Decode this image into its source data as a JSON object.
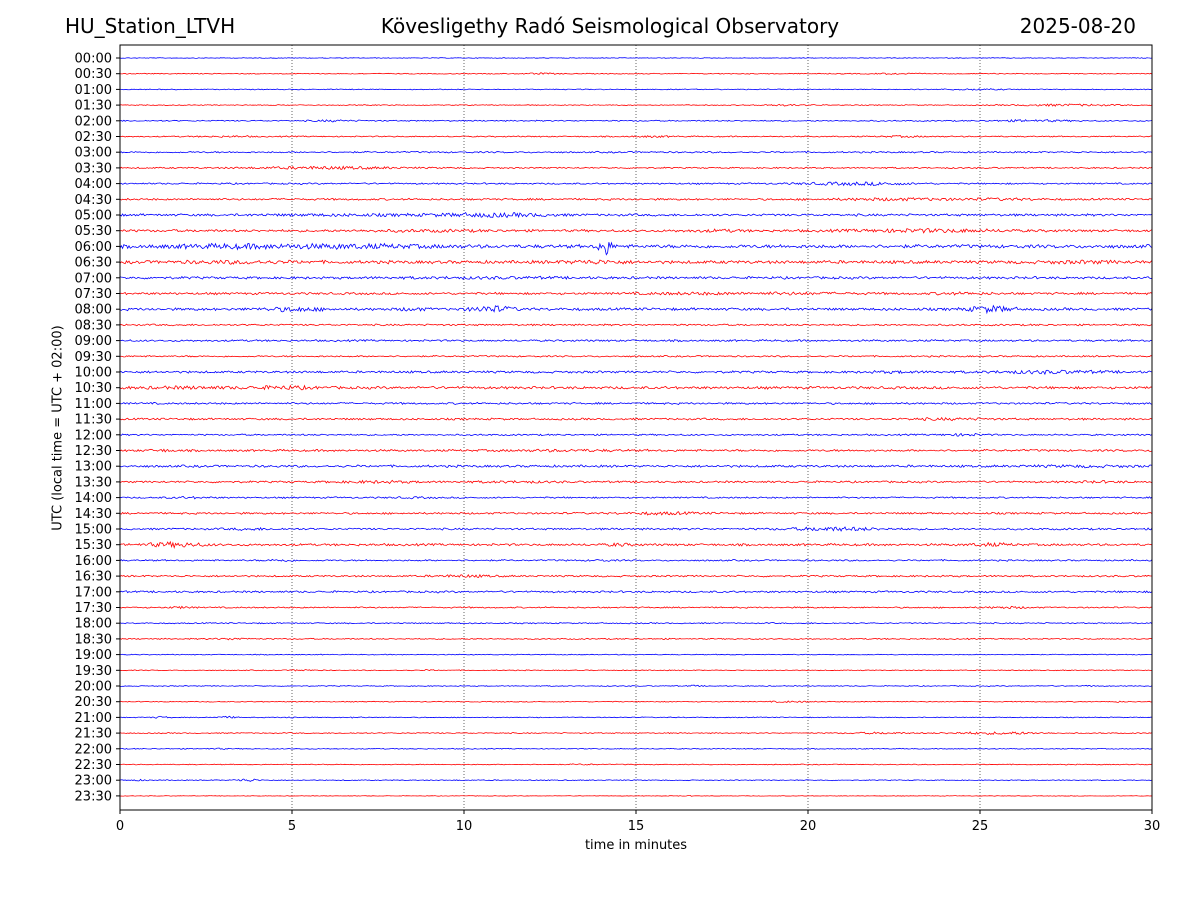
{
  "header": {
    "station": "HU_Station_LTVH",
    "title": "Kövesligethy Radó Seismological Observatory",
    "date": "2025-08-20"
  },
  "chart_data": {
    "type": "line",
    "title": "Kövesligethy Radó Seismological Observatory",
    "xlabel": "time in minutes",
    "ylabel": "UTC (local time = UTC + 02:00)",
    "xlim": [
      0,
      30
    ],
    "x_ticks": [
      0,
      5,
      10,
      15,
      20,
      25,
      30
    ],
    "grid": "vertical dotted lines at 5-minute ticks",
    "series_colors": [
      "#0000ff",
      "#ff0000"
    ],
    "traces": [
      {
        "label": "00:00",
        "color": "#0000ff",
        "amp": 0.4,
        "bursts": []
      },
      {
        "label": "00:30",
        "color": "#ff0000",
        "amp": 0.5,
        "bursts": [
          [
            12.2,
            1.2,
            0.5
          ],
          [
            22.5,
            1.5,
            0.5
          ]
        ]
      },
      {
        "label": "01:00",
        "color": "#0000ff",
        "amp": 0.5,
        "bursts": [
          [
            24.8,
            2,
            0.5
          ]
        ]
      },
      {
        "label": "01:30",
        "color": "#ff0000",
        "amp": 0.5,
        "bursts": [
          [
            19.3,
            2,
            0.5
          ],
          [
            27.5,
            3.5,
            0.8
          ]
        ]
      },
      {
        "label": "02:00",
        "color": "#0000ff",
        "amp": 0.7,
        "bursts": [
          [
            6.2,
            1.5,
            0.6
          ],
          [
            26.5,
            2.5,
            0.7
          ]
        ]
      },
      {
        "label": "02:30",
        "color": "#ff0000",
        "amp": 0.7,
        "bursts": [
          [
            3.2,
            2,
            0.4
          ],
          [
            15.5,
            1.5,
            0.5
          ],
          [
            22.8,
            1.5,
            0.5
          ]
        ]
      },
      {
        "label": "03:00",
        "color": "#0000ff",
        "amp": 0.9,
        "bursts": []
      },
      {
        "label": "03:30",
        "color": "#ff0000",
        "amp": 0.8,
        "bursts": [
          [
            6.0,
            5,
            1.0
          ]
        ]
      },
      {
        "label": "04:00",
        "color": "#0000ff",
        "amp": 0.9,
        "bursts": [
          [
            21.0,
            3,
            1.0
          ],
          [
            22.3,
            2,
            0.6
          ]
        ]
      },
      {
        "label": "04:30",
        "color": "#ff0000",
        "amp": 1.1,
        "bursts": [
          [
            22.5,
            4,
            0.8
          ],
          [
            25.5,
            3,
            0.6
          ]
        ]
      },
      {
        "label": "05:00",
        "color": "#0000ff",
        "amp": 1.3,
        "bursts": [
          [
            6.5,
            6,
            0.5
          ],
          [
            10.8,
            4,
            1.4
          ]
        ]
      },
      {
        "label": "05:30",
        "color": "#ff0000",
        "amp": 1.4,
        "bursts": [
          [
            9.0,
            4,
            0.5
          ],
          [
            17.3,
            2,
            0.6
          ],
          [
            23.5,
            5,
            1.1
          ]
        ]
      },
      {
        "label": "06:00",
        "color": "#0000ff",
        "amp": 2.0,
        "bursts": [
          [
            3.0,
            4,
            1.0
          ],
          [
            6.5,
            6,
            1.2
          ],
          [
            14.1,
            0.4,
            9
          ]
        ]
      },
      {
        "label": "06:30",
        "color": "#ff0000",
        "amp": 1.8,
        "bursts": [
          [
            3.5,
            4,
            0.7
          ],
          [
            13.8,
            2,
            1.0
          ],
          [
            28.0,
            3,
            0.6
          ]
        ]
      },
      {
        "label": "07:00",
        "color": "#0000ff",
        "amp": 1.4,
        "bursts": [
          [
            10.5,
            6,
            0.4
          ]
        ]
      },
      {
        "label": "07:30",
        "color": "#ff0000",
        "amp": 1.3,
        "bursts": [
          [
            16.5,
            3,
            0.6
          ],
          [
            19.5,
            4,
            0.6
          ],
          [
            24.5,
            2,
            0.6
          ]
        ]
      },
      {
        "label": "08:00",
        "color": "#0000ff",
        "amp": 1.5,
        "bursts": [
          [
            5.0,
            2,
            1.5
          ],
          [
            8.5,
            1,
            1.0
          ],
          [
            10.8,
            1.5,
            2.5
          ],
          [
            25.3,
            1.5,
            2.5
          ]
        ]
      },
      {
        "label": "08:30",
        "color": "#ff0000",
        "amp": 1.0,
        "bursts": []
      },
      {
        "label": "09:00",
        "color": "#0000ff",
        "amp": 1.1,
        "bursts": []
      },
      {
        "label": "09:30",
        "color": "#ff0000",
        "amp": 0.9,
        "bursts": []
      },
      {
        "label": "10:00",
        "color": "#0000ff",
        "amp": 1.3,
        "bursts": [
          [
            22.5,
            2,
            0.5
          ],
          [
            27.0,
            4,
            1.0
          ]
        ]
      },
      {
        "label": "10:30",
        "color": "#ff0000",
        "amp": 1.5,
        "bursts": [
          [
            2.0,
            4,
            0.6
          ],
          [
            4.8,
            2,
            1.0
          ]
        ]
      },
      {
        "label": "11:00",
        "color": "#0000ff",
        "amp": 1.1,
        "bursts": []
      },
      {
        "label": "11:30",
        "color": "#ff0000",
        "amp": 1.1,
        "bursts": [
          [
            24.0,
            3,
            0.6
          ]
        ]
      },
      {
        "label": "12:00",
        "color": "#0000ff",
        "amp": 0.9,
        "bursts": [
          [
            24.5,
            1.5,
            0.8
          ]
        ]
      },
      {
        "label": "12:30",
        "color": "#ff0000",
        "amp": 1.2,
        "bursts": [
          [
            1.2,
            1,
            0.6
          ],
          [
            13.0,
            4,
            0.5
          ]
        ]
      },
      {
        "label": "13:00",
        "color": "#0000ff",
        "amp": 1.3,
        "bursts": [
          [
            28.0,
            4,
            0.5
          ]
        ]
      },
      {
        "label": "13:30",
        "color": "#ff0000",
        "amp": 1.1,
        "bursts": [
          [
            7.5,
            3,
            0.7
          ],
          [
            11.5,
            3,
            0.5
          ],
          [
            28.5,
            2,
            0.5
          ]
        ]
      },
      {
        "label": "14:00",
        "color": "#0000ff",
        "amp": 0.9,
        "bursts": [
          [
            2.0,
            1.5,
            0.5
          ],
          [
            8.5,
            1.5,
            0.4
          ]
        ]
      },
      {
        "label": "14:30",
        "color": "#ff0000",
        "amp": 1.1,
        "bursts": [
          [
            15.8,
            2.5,
            0.8
          ]
        ]
      },
      {
        "label": "15:00",
        "color": "#0000ff",
        "amp": 1.1,
        "bursts": [
          [
            3.8,
            1.5,
            0.6
          ],
          [
            20.8,
            3,
            1.4
          ]
        ]
      },
      {
        "label": "15:30",
        "color": "#ff0000",
        "amp": 1.3,
        "bursts": [
          [
            1.6,
            2,
            1.8
          ],
          [
            14.5,
            0.8,
            1.0
          ],
          [
            25.3,
            1.5,
            1.0
          ]
        ]
      },
      {
        "label": "16:00",
        "color": "#0000ff",
        "amp": 0.9,
        "bursts": [
          [
            4.7,
            0.8,
            0.8
          ],
          [
            14.0,
            0.8,
            0.6
          ]
        ]
      },
      {
        "label": "16:30",
        "color": "#ff0000",
        "amp": 1.0,
        "bursts": [
          [
            10.0,
            2,
            0.8
          ]
        ]
      },
      {
        "label": "17:00",
        "color": "#0000ff",
        "amp": 1.1,
        "bursts": []
      },
      {
        "label": "17:30",
        "color": "#ff0000",
        "amp": 0.8,
        "bursts": [
          [
            1.8,
            0.8,
            0.7
          ],
          [
            25.8,
            1.5,
            0.7
          ]
        ]
      },
      {
        "label": "18:00",
        "color": "#0000ff",
        "amp": 0.7,
        "bursts": []
      },
      {
        "label": "18:30",
        "color": "#ff0000",
        "amp": 0.7,
        "bursts": [
          [
            3.3,
            1.2,
            0.7
          ]
        ]
      },
      {
        "label": "19:00",
        "color": "#0000ff",
        "amp": 0.5,
        "bursts": []
      },
      {
        "label": "19:30",
        "color": "#ff0000",
        "amp": 0.5,
        "bursts": [
          [
            5.3,
            0.8,
            0.6
          ],
          [
            9.0,
            0.5,
            0.4
          ]
        ]
      },
      {
        "label": "20:00",
        "color": "#0000ff",
        "amp": 0.5,
        "bursts": [
          [
            16.7,
            0.5,
            0.6
          ],
          [
            28.2,
            0.5,
            0.5
          ]
        ]
      },
      {
        "label": "20:30",
        "color": "#ff0000",
        "amp": 0.5,
        "bursts": [
          [
            19.5,
            1.5,
            0.5
          ],
          [
            29.0,
            0.5,
            0.4
          ]
        ]
      },
      {
        "label": "21:00",
        "color": "#0000ff",
        "amp": 0.5,
        "bursts": [
          [
            1.2,
            0.6,
            0.8
          ],
          [
            3.1,
            0.7,
            0.8
          ],
          [
            5.0,
            0.5,
            0.6
          ],
          [
            6.9,
            0.5,
            0.5
          ]
        ]
      },
      {
        "label": "21:30",
        "color": "#ff0000",
        "amp": 0.6,
        "bursts": [
          [
            22.0,
            2,
            0.6
          ],
          [
            24.5,
            1.5,
            0.6
          ],
          [
            25.8,
            2.2,
            1.0
          ]
        ]
      },
      {
        "label": "22:00",
        "color": "#0000ff",
        "amp": 0.5,
        "bursts": [
          [
            2.8,
            0.8,
            0.4
          ]
        ]
      },
      {
        "label": "22:30",
        "color": "#ff0000",
        "amp": 0.5,
        "bursts": [
          [
            13.5,
            1,
            0.4
          ]
        ]
      },
      {
        "label": "23:00",
        "color": "#0000ff",
        "amp": 0.5,
        "bursts": [
          [
            0.6,
            0.8,
            0.4
          ],
          [
            3.7,
            0.8,
            1.2
          ]
        ]
      },
      {
        "label": "23:30",
        "color": "#ff0000",
        "amp": 0.3,
        "bursts": [
          [
            16.5,
            0.5,
            0.3
          ]
        ]
      }
    ]
  }
}
